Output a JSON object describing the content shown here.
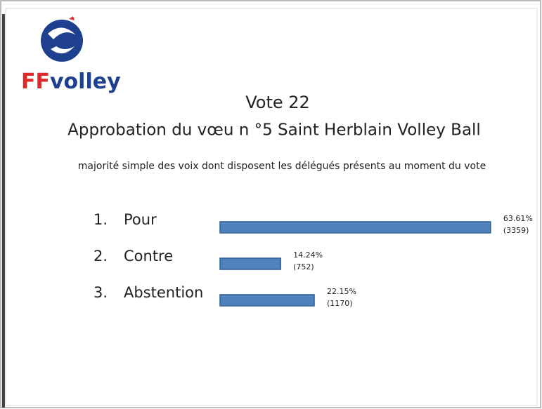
{
  "logo": {
    "red_text": "FF",
    "blue_text": "volley"
  },
  "chart_data": {
    "type": "bar",
    "orientation": "horizontal",
    "title": "Vote 22",
    "subtitle": "Approbation du vœu n °5 Saint Herblain Volley Ball",
    "note": "majorité simple des voix dont disposent les délégués présents au moment du vote",
    "category_numbers": [
      "1.",
      "2.",
      "3."
    ],
    "categories": [
      "Pour",
      "Contre",
      "Abstention"
    ],
    "values": [
      63.61,
      14.24,
      22.15
    ],
    "value_labels": [
      "63.61%",
      "14.24%",
      "22.15%"
    ],
    "counts": [
      3359,
      752,
      1170
    ],
    "count_labels": [
      "(3359)",
      "(752)",
      "(1170)"
    ],
    "color": "#4f81bd"
  }
}
